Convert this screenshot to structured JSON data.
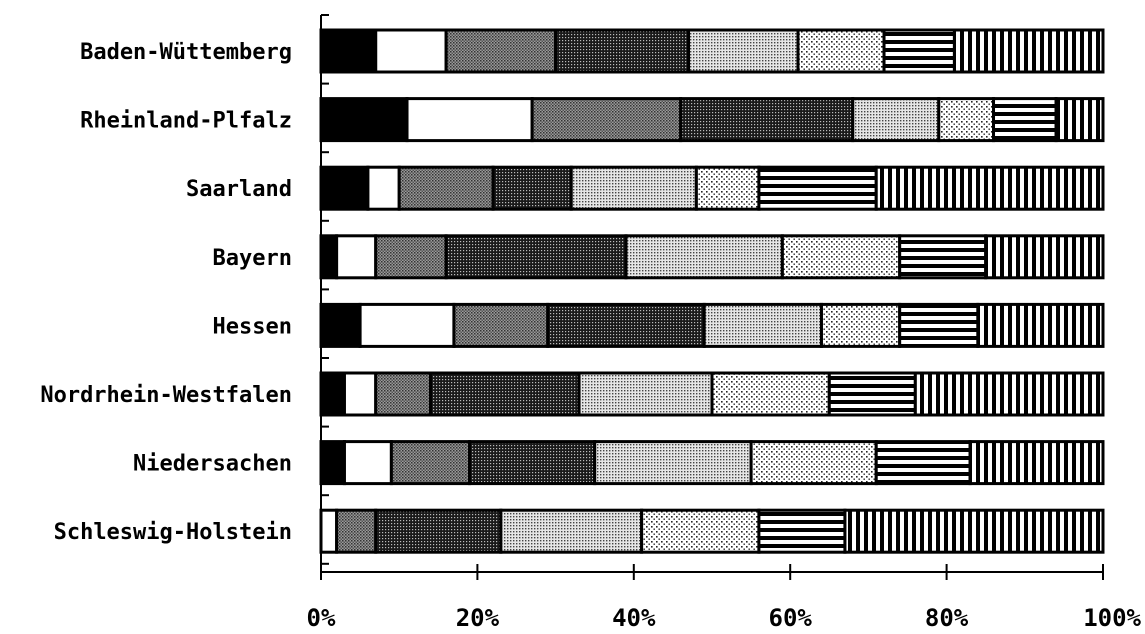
{
  "chart_data": {
    "type": "bar",
    "stacked": true,
    "orientation": "horizontal",
    "normalized": true,
    "title": "",
    "xlabel": "",
    "ylabel": "",
    "xlim": [
      0,
      100
    ],
    "x_ticks": [
      "0%",
      "20%",
      "40%",
      "60%",
      "80%",
      "100%"
    ],
    "grid": false,
    "legend": "none",
    "categories": [
      "Baden-Wüttemberg",
      "Rheinland-Plfalz",
      "Saarland",
      "Bayern",
      "Hessen",
      "Nordrhein-Westfalen",
      "Niedersachen",
      "Schleswig-Holstein"
    ],
    "series": [
      {
        "pattern": "solid-black",
        "values": [
          7,
          11,
          6,
          2,
          5,
          3,
          3,
          0
        ]
      },
      {
        "pattern": "white",
        "values": [
          9,
          16,
          4,
          5,
          12,
          4,
          6,
          2
        ]
      },
      {
        "pattern": "dense-gray",
        "values": [
          14,
          19,
          12,
          9,
          12,
          7,
          10,
          5
        ]
      },
      {
        "pattern": "dark-dots",
        "values": [
          17,
          22,
          10,
          23,
          20,
          19,
          16,
          16
        ]
      },
      {
        "pattern": "fine-dots",
        "values": [
          14,
          11,
          16,
          20,
          15,
          17,
          20,
          18
        ]
      },
      {
        "pattern": "sparse-dots",
        "values": [
          11,
          7,
          8,
          15,
          10,
          15,
          16,
          15
        ]
      },
      {
        "pattern": "horizontal-lines",
        "values": [
          9,
          8,
          15,
          11,
          10,
          11,
          12,
          11
        ]
      },
      {
        "pattern": "vertical-lines",
        "values": [
          19,
          6,
          29,
          15,
          16,
          24,
          17,
          33
        ]
      }
    ]
  }
}
